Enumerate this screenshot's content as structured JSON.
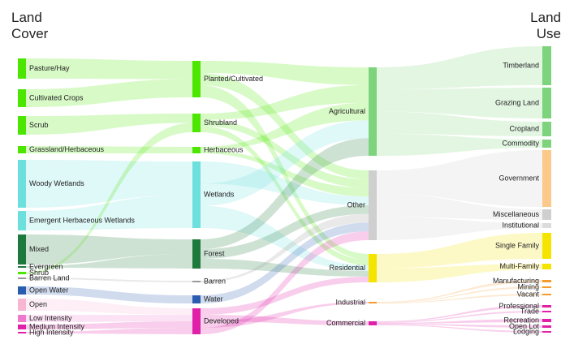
{
  "headers": {
    "left": [
      "Land",
      "Cover"
    ],
    "right": [
      "Land",
      "Use"
    ]
  },
  "chart_data": {
    "type": "sankey",
    "columns": [
      [
        {
          "id": "pasture",
          "label": "Pasture/Hay",
          "color": "#4ce600"
        },
        {
          "id": "crops",
          "label": "Cultivated Crops",
          "color": "#4ce600"
        },
        {
          "id": "scrub",
          "label": "Scrub",
          "color": "#4ce600"
        },
        {
          "id": "grass",
          "label": "Grassland/Herbaceous",
          "color": "#4ce600"
        },
        {
          "id": "woodywet",
          "label": "Woody Wetlands",
          "color": "#6de0dd"
        },
        {
          "id": "emergent",
          "label": "Emergent Herbaceous Wetlands",
          "color": "#6de0dd"
        },
        {
          "id": "mixed",
          "label": "Mixed",
          "color": "#1e7a3c"
        },
        {
          "id": "evergreen",
          "label": "Evergreen",
          "color": "#1e7a3c"
        },
        {
          "id": "shrub",
          "label": "Shrub",
          "color": "#4ce600"
        },
        {
          "id": "barrenland",
          "label": "Barren Land",
          "color": "#999999"
        },
        {
          "id": "openwater",
          "label": "Open Water",
          "color": "#2a5db0"
        },
        {
          "id": "open",
          "label": "Open",
          "color": "#f7b6d2"
        },
        {
          "id": "lowint",
          "label": "Low Intensity",
          "color": "#ee7ad0"
        },
        {
          "id": "medint",
          "label": "Medium Intensity",
          "color": "#e020a8"
        },
        {
          "id": "highint",
          "label": "High Intensity",
          "color": "#e020a8"
        }
      ],
      [
        {
          "id": "planted",
          "label": "Planted/Cultivated",
          "color": "#4ce600"
        },
        {
          "id": "shrubland",
          "label": "Shrubland",
          "color": "#4ce600"
        },
        {
          "id": "herbaceous",
          "label": "Herbaceous",
          "color": "#4ce600"
        },
        {
          "id": "wetlands",
          "label": "Wetlands",
          "color": "#6de0dd"
        },
        {
          "id": "forest",
          "label": "Forest",
          "color": "#1e7a3c"
        },
        {
          "id": "barren",
          "label": "Barren",
          "color": "#999999"
        },
        {
          "id": "water",
          "label": "Water",
          "color": "#2a5db0"
        },
        {
          "id": "developed",
          "label": "Developed",
          "color": "#e020a8"
        }
      ],
      [
        {
          "id": "agricultural",
          "label": "Agricultural",
          "color": "#7dd47d"
        },
        {
          "id": "other",
          "label": "Other",
          "color": "#cfcfcf"
        },
        {
          "id": "residential",
          "label": "Residential",
          "color": "#f5e400"
        },
        {
          "id": "industrial",
          "label": "Industrial",
          "color": "#f59a2c"
        },
        {
          "id": "commercial",
          "label": "Commercial",
          "color": "#e020a8"
        }
      ],
      [
        {
          "id": "timberland",
          "label": "Timberland",
          "color": "#7dd47d"
        },
        {
          "id": "grazing",
          "label": "Grazing Land",
          "color": "#7dd47d"
        },
        {
          "id": "cropland",
          "label": "Cropland",
          "color": "#7dd47d"
        },
        {
          "id": "commodity",
          "label": "Commodity",
          "color": "#7dd47d"
        },
        {
          "id": "government",
          "label": "Government",
          "color": "#fbc98a"
        },
        {
          "id": "misc",
          "label": "Miscellaneous",
          "color": "#cfcfcf"
        },
        {
          "id": "institutional",
          "label": "Institutional",
          "color": "#dcdcdc"
        },
        {
          "id": "singlefam",
          "label": "Single Family",
          "color": "#f5e400"
        },
        {
          "id": "multifam",
          "label": "Multi-Family",
          "color": "#f5e400"
        },
        {
          "id": "manufacturing",
          "label": "Manufacturing",
          "color": "#f59a2c"
        },
        {
          "id": "mining",
          "label": "Mining",
          "color": "#f59a2c"
        },
        {
          "id": "vacant",
          "label": "Vacant",
          "color": "#f59a2c"
        },
        {
          "id": "professional",
          "label": "Professional",
          "color": "#e020a8"
        },
        {
          "id": "trade",
          "label": "Trade",
          "color": "#e020a8"
        },
        {
          "id": "recreation",
          "label": "Recreation",
          "color": "#e020a8"
        },
        {
          "id": "openlot",
          "label": "Open Lot",
          "color": "#e020a8"
        },
        {
          "id": "lodging",
          "label": "Lodging",
          "color": "#e020a8"
        }
      ]
    ],
    "links": [
      [
        "pasture",
        "planted"
      ],
      [
        "crops",
        "planted"
      ],
      [
        "scrub",
        "shrubland"
      ],
      [
        "grass",
        "herbaceous"
      ],
      [
        "woodywet",
        "wetlands"
      ],
      [
        "emergent",
        "wetlands"
      ],
      [
        "mixed",
        "forest"
      ],
      [
        "evergreen",
        "forest"
      ],
      [
        "shrub",
        "shrubland"
      ],
      [
        "barrenland",
        "barren"
      ],
      [
        "openwater",
        "water"
      ],
      [
        "open",
        "developed"
      ],
      [
        "lowint",
        "developed"
      ],
      [
        "medint",
        "developed"
      ],
      [
        "highint",
        "developed"
      ],
      [
        "planted",
        "agricultural"
      ],
      [
        "planted",
        "other"
      ],
      [
        "planted",
        "residential"
      ],
      [
        "shrubland",
        "agricultural"
      ],
      [
        "shrubland",
        "other"
      ],
      [
        "shrubland",
        "residential"
      ],
      [
        "herbaceous",
        "agricultural"
      ],
      [
        "herbaceous",
        "other"
      ],
      [
        "wetlands",
        "other"
      ],
      [
        "wetlands",
        "agricultural"
      ],
      [
        "wetlands",
        "residential"
      ],
      [
        "forest",
        "agricultural"
      ],
      [
        "forest",
        "other"
      ],
      [
        "forest",
        "residential"
      ],
      [
        "barren",
        "other"
      ],
      [
        "water",
        "other"
      ],
      [
        "developed",
        "residential"
      ],
      [
        "developed",
        "commercial"
      ],
      [
        "developed",
        "industrial"
      ],
      [
        "developed",
        "other"
      ],
      [
        "agricultural",
        "timberland"
      ],
      [
        "agricultural",
        "grazing"
      ],
      [
        "agricultural",
        "cropland"
      ],
      [
        "agricultural",
        "commodity"
      ],
      [
        "other",
        "government"
      ],
      [
        "other",
        "misc"
      ],
      [
        "other",
        "institutional"
      ],
      [
        "residential",
        "singlefam"
      ],
      [
        "residential",
        "multifam"
      ],
      [
        "industrial",
        "manufacturing"
      ],
      [
        "industrial",
        "mining"
      ],
      [
        "industrial",
        "vacant"
      ],
      [
        "commercial",
        "professional"
      ],
      [
        "commercial",
        "trade"
      ],
      [
        "commercial",
        "recreation"
      ],
      [
        "commercial",
        "openlot"
      ],
      [
        "commercial",
        "lodging"
      ]
    ]
  }
}
